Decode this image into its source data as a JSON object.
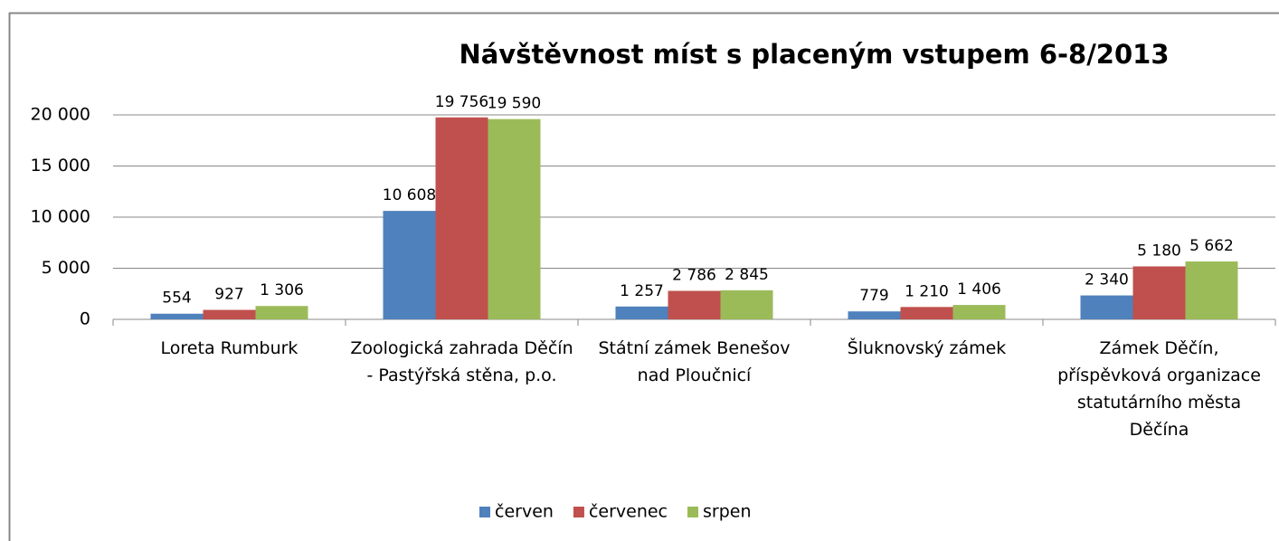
{
  "chart_data": {
    "type": "bar",
    "title": "Návštěvnost míst s placeným vstupem 6-8/2013",
    "categories": [
      "Loreta Rumburk",
      "Zoologická zahrada Děčín - Pastýřská stěna, p.o.",
      "Státní zámek Benešov nad Ploučnicí",
      "Šluknovský zámek",
      "Zámek Děčín, příspěvková organizace statutárního města Děčína"
    ],
    "series": [
      {
        "name": "červen",
        "color": "#4f81bd",
        "values": [
          554,
          10608,
          1257,
          779,
          2340
        ],
        "value_labels": [
          "554",
          "10 608",
          "1 257",
          "779",
          "2 340"
        ]
      },
      {
        "name": "červenec",
        "color": "#c0504d",
        "values": [
          927,
          19756,
          2786,
          1210,
          5180
        ],
        "value_labels": [
          "927",
          "19 756",
          "2 786",
          "1 210",
          "5 180"
        ]
      },
      {
        "name": "srpen",
        "color": "#9bbb59",
        "values": [
          1306,
          19590,
          2845,
          1406,
          5662
        ],
        "value_labels": [
          "1 306",
          "19 590",
          "2 845",
          "1 406",
          "5 662"
        ]
      }
    ],
    "ylim": [
      0,
      20000
    ],
    "yticks": [
      0,
      {
        "value": 5000,
        "label": "5 000"
      },
      {
        "value": 10000,
        "label": "10 000"
      },
      {
        "value": 15000,
        "label": "15 000"
      },
      {
        "value": 20000,
        "label": "20 000"
      }
    ],
    "grid": true,
    "legend": "bottom"
  }
}
